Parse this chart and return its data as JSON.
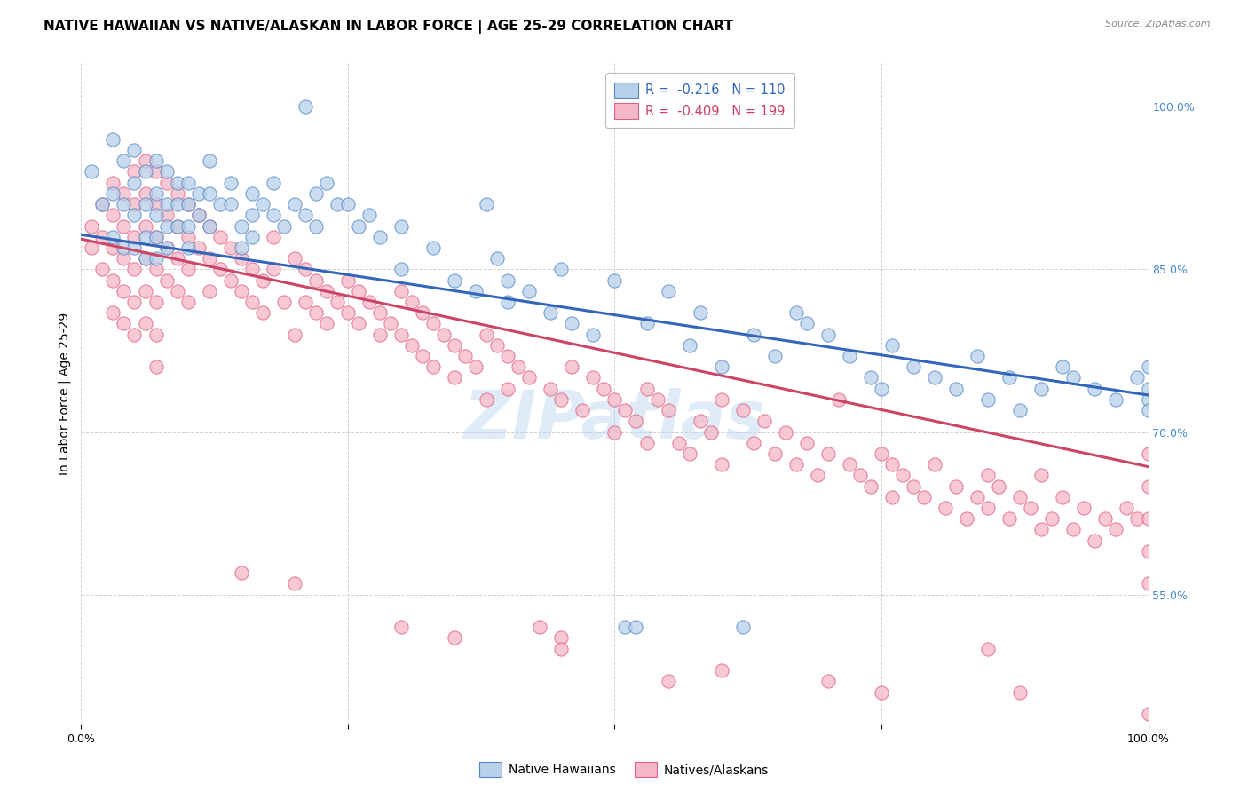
{
  "title": "NATIVE HAWAIIAN VS NATIVE/ALASKAN IN LABOR FORCE | AGE 25-29 CORRELATION CHART",
  "source": "Source: ZipAtlas.com",
  "ylabel": "In Labor Force | Age 25-29",
  "xlim": [
    0,
    1
  ],
  "ylim": [
    0.43,
    1.04
  ],
  "xtick_vals": [
    0.0,
    0.25,
    0.5,
    0.75,
    1.0
  ],
  "xtick_labels": [
    "0.0%",
    "",
    "",
    "",
    "100.0%"
  ],
  "ytick_labels_right": [
    "55.0%",
    "70.0%",
    "85.0%",
    "100.0%"
  ],
  "ytick_vals_right": [
    0.55,
    0.7,
    0.85,
    1.0
  ],
  "legend_blue_label": "R =  -0.216   N = 110",
  "legend_pink_label": "R =  -0.409   N = 199",
  "blue_fill": "#b8d0ea",
  "pink_fill": "#f5b8c8",
  "blue_edge": "#5588c8",
  "pink_edge": "#e06080",
  "blue_line_color": "#3366bb",
  "pink_line_color": "#cc4466",
  "blue_intercept": 0.882,
  "blue_slope": -0.148,
  "pink_intercept": 0.878,
  "pink_slope": -0.21,
  "watermark": "ZIPatlas",
  "background_color": "#ffffff",
  "grid_color": "#cccccc",
  "title_fontsize": 11,
  "axis_label_fontsize": 10,
  "tick_fontsize": 9,
  "right_tick_color": "#4488cc",
  "blue_scatter": [
    [
      0.01,
      0.94
    ],
    [
      0.02,
      0.91
    ],
    [
      0.03,
      0.97
    ],
    [
      0.03,
      0.92
    ],
    [
      0.03,
      0.88
    ],
    [
      0.04,
      0.95
    ],
    [
      0.04,
      0.91
    ],
    [
      0.04,
      0.87
    ],
    [
      0.05,
      0.96
    ],
    [
      0.05,
      0.93
    ],
    [
      0.05,
      0.9
    ],
    [
      0.05,
      0.87
    ],
    [
      0.06,
      0.94
    ],
    [
      0.06,
      0.91
    ],
    [
      0.06,
      0.88
    ],
    [
      0.06,
      0.86
    ],
    [
      0.07,
      0.95
    ],
    [
      0.07,
      0.92
    ],
    [
      0.07,
      0.9
    ],
    [
      0.07,
      0.88
    ],
    [
      0.07,
      0.86
    ],
    [
      0.08,
      0.94
    ],
    [
      0.08,
      0.91
    ],
    [
      0.08,
      0.89
    ],
    [
      0.08,
      0.87
    ],
    [
      0.09,
      0.93
    ],
    [
      0.09,
      0.91
    ],
    [
      0.09,
      0.89
    ],
    [
      0.1,
      0.93
    ],
    [
      0.1,
      0.91
    ],
    [
      0.1,
      0.89
    ],
    [
      0.1,
      0.87
    ],
    [
      0.11,
      0.92
    ],
    [
      0.11,
      0.9
    ],
    [
      0.12,
      0.95
    ],
    [
      0.12,
      0.92
    ],
    [
      0.12,
      0.89
    ],
    [
      0.13,
      0.91
    ],
    [
      0.14,
      0.93
    ],
    [
      0.14,
      0.91
    ],
    [
      0.15,
      0.89
    ],
    [
      0.15,
      0.87
    ],
    [
      0.16,
      0.92
    ],
    [
      0.16,
      0.9
    ],
    [
      0.16,
      0.88
    ],
    [
      0.17,
      0.91
    ],
    [
      0.18,
      0.93
    ],
    [
      0.18,
      0.9
    ],
    [
      0.19,
      0.89
    ],
    [
      0.2,
      0.91
    ],
    [
      0.21,
      1.0
    ],
    [
      0.21,
      0.9
    ],
    [
      0.22,
      0.92
    ],
    [
      0.22,
      0.89
    ],
    [
      0.23,
      0.93
    ],
    [
      0.24,
      0.91
    ],
    [
      0.25,
      0.91
    ],
    [
      0.26,
      0.89
    ],
    [
      0.27,
      0.9
    ],
    [
      0.28,
      0.88
    ],
    [
      0.3,
      0.85
    ],
    [
      0.3,
      0.89
    ],
    [
      0.33,
      0.87
    ],
    [
      0.35,
      0.84
    ],
    [
      0.37,
      0.83
    ],
    [
      0.38,
      0.91
    ],
    [
      0.39,
      0.86
    ],
    [
      0.4,
      0.82
    ],
    [
      0.4,
      0.84
    ],
    [
      0.42,
      0.83
    ],
    [
      0.44,
      0.81
    ],
    [
      0.45,
      0.85
    ],
    [
      0.46,
      0.8
    ],
    [
      0.48,
      0.79
    ],
    [
      0.5,
      0.84
    ],
    [
      0.51,
      0.52
    ],
    [
      0.52,
      0.52
    ],
    [
      0.53,
      0.8
    ],
    [
      0.55,
      0.83
    ],
    [
      0.57,
      0.78
    ],
    [
      0.58,
      0.81
    ],
    [
      0.6,
      0.76
    ],
    [
      0.63,
      0.79
    ],
    [
      0.65,
      0.77
    ],
    [
      0.67,
      0.81
    ],
    [
      0.68,
      0.8
    ],
    [
      0.7,
      0.79
    ],
    [
      0.72,
      0.77
    ],
    [
      0.74,
      0.75
    ],
    [
      0.75,
      0.74
    ],
    [
      0.76,
      0.78
    ],
    [
      0.78,
      0.76
    ],
    [
      0.8,
      0.75
    ],
    [
      0.82,
      0.74
    ],
    [
      0.84,
      0.77
    ],
    [
      0.85,
      0.73
    ],
    [
      0.87,
      0.75
    ],
    [
      0.88,
      0.72
    ],
    [
      0.9,
      0.74
    ],
    [
      0.92,
      0.76
    ],
    [
      0.93,
      0.75
    ],
    [
      0.95,
      0.74
    ],
    [
      0.97,
      0.73
    ],
    [
      0.99,
      0.75
    ],
    [
      1.0,
      0.73
    ],
    [
      1.0,
      0.76
    ],
    [
      1.0,
      0.72
    ],
    [
      1.0,
      0.74
    ],
    [
      0.62,
      0.52
    ]
  ],
  "pink_scatter": [
    [
      0.01,
      0.89
    ],
    [
      0.01,
      0.87
    ],
    [
      0.02,
      0.91
    ],
    [
      0.02,
      0.88
    ],
    [
      0.02,
      0.85
    ],
    [
      0.03,
      0.93
    ],
    [
      0.03,
      0.9
    ],
    [
      0.03,
      0.87
    ],
    [
      0.03,
      0.84
    ],
    [
      0.03,
      0.81
    ],
    [
      0.04,
      0.92
    ],
    [
      0.04,
      0.89
    ],
    [
      0.04,
      0.86
    ],
    [
      0.04,
      0.83
    ],
    [
      0.04,
      0.8
    ],
    [
      0.05,
      0.94
    ],
    [
      0.05,
      0.91
    ],
    [
      0.05,
      0.88
    ],
    [
      0.05,
      0.85
    ],
    [
      0.05,
      0.82
    ],
    [
      0.05,
      0.79
    ],
    [
      0.06,
      0.95
    ],
    [
      0.06,
      0.92
    ],
    [
      0.06,
      0.89
    ],
    [
      0.06,
      0.86
    ],
    [
      0.06,
      0.83
    ],
    [
      0.06,
      0.8
    ],
    [
      0.07,
      0.94
    ],
    [
      0.07,
      0.91
    ],
    [
      0.07,
      0.88
    ],
    [
      0.07,
      0.85
    ],
    [
      0.07,
      0.82
    ],
    [
      0.07,
      0.79
    ],
    [
      0.07,
      0.76
    ],
    [
      0.08,
      0.93
    ],
    [
      0.08,
      0.9
    ],
    [
      0.08,
      0.87
    ],
    [
      0.08,
      0.84
    ],
    [
      0.09,
      0.92
    ],
    [
      0.09,
      0.89
    ],
    [
      0.09,
      0.86
    ],
    [
      0.09,
      0.83
    ],
    [
      0.1,
      0.91
    ],
    [
      0.1,
      0.88
    ],
    [
      0.1,
      0.85
    ],
    [
      0.1,
      0.82
    ],
    [
      0.11,
      0.9
    ],
    [
      0.11,
      0.87
    ],
    [
      0.12,
      0.89
    ],
    [
      0.12,
      0.86
    ],
    [
      0.12,
      0.83
    ],
    [
      0.13,
      0.88
    ],
    [
      0.13,
      0.85
    ],
    [
      0.14,
      0.87
    ],
    [
      0.14,
      0.84
    ],
    [
      0.15,
      0.86
    ],
    [
      0.15,
      0.83
    ],
    [
      0.16,
      0.85
    ],
    [
      0.16,
      0.82
    ],
    [
      0.17,
      0.84
    ],
    [
      0.17,
      0.81
    ],
    [
      0.18,
      0.88
    ],
    [
      0.18,
      0.85
    ],
    [
      0.19,
      0.82
    ],
    [
      0.2,
      0.86
    ],
    [
      0.2,
      0.79
    ],
    [
      0.21,
      0.85
    ],
    [
      0.21,
      0.82
    ],
    [
      0.22,
      0.84
    ],
    [
      0.22,
      0.81
    ],
    [
      0.23,
      0.83
    ],
    [
      0.23,
      0.8
    ],
    [
      0.24,
      0.82
    ],
    [
      0.25,
      0.81
    ],
    [
      0.25,
      0.84
    ],
    [
      0.26,
      0.8
    ],
    [
      0.26,
      0.83
    ],
    [
      0.27,
      0.82
    ],
    [
      0.28,
      0.79
    ],
    [
      0.28,
      0.81
    ],
    [
      0.29,
      0.8
    ],
    [
      0.3,
      0.83
    ],
    [
      0.3,
      0.79
    ],
    [
      0.31,
      0.82
    ],
    [
      0.31,
      0.78
    ],
    [
      0.32,
      0.81
    ],
    [
      0.32,
      0.77
    ],
    [
      0.33,
      0.8
    ],
    [
      0.33,
      0.76
    ],
    [
      0.34,
      0.79
    ],
    [
      0.35,
      0.78
    ],
    [
      0.35,
      0.75
    ],
    [
      0.36,
      0.77
    ],
    [
      0.37,
      0.76
    ],
    [
      0.38,
      0.79
    ],
    [
      0.38,
      0.73
    ],
    [
      0.39,
      0.78
    ],
    [
      0.4,
      0.77
    ],
    [
      0.4,
      0.74
    ],
    [
      0.41,
      0.76
    ],
    [
      0.42,
      0.75
    ],
    [
      0.43,
      0.52
    ],
    [
      0.44,
      0.74
    ],
    [
      0.45,
      0.73
    ],
    [
      0.45,
      0.51
    ],
    [
      0.46,
      0.76
    ],
    [
      0.47,
      0.72
    ],
    [
      0.48,
      0.75
    ],
    [
      0.49,
      0.74
    ],
    [
      0.5,
      0.73
    ],
    [
      0.5,
      0.7
    ],
    [
      0.51,
      0.72
    ],
    [
      0.52,
      0.71
    ],
    [
      0.53,
      0.74
    ],
    [
      0.53,
      0.69
    ],
    [
      0.54,
      0.73
    ],
    [
      0.55,
      0.72
    ],
    [
      0.56,
      0.69
    ],
    [
      0.57,
      0.68
    ],
    [
      0.58,
      0.71
    ],
    [
      0.59,
      0.7
    ],
    [
      0.6,
      0.73
    ],
    [
      0.6,
      0.67
    ],
    [
      0.62,
      0.72
    ],
    [
      0.63,
      0.69
    ],
    [
      0.64,
      0.71
    ],
    [
      0.65,
      0.68
    ],
    [
      0.66,
      0.7
    ],
    [
      0.67,
      0.67
    ],
    [
      0.68,
      0.69
    ],
    [
      0.69,
      0.66
    ],
    [
      0.7,
      0.68
    ],
    [
      0.71,
      0.73
    ],
    [
      0.72,
      0.67
    ],
    [
      0.73,
      0.66
    ],
    [
      0.74,
      0.65
    ],
    [
      0.75,
      0.68
    ],
    [
      0.76,
      0.67
    ],
    [
      0.76,
      0.64
    ],
    [
      0.77,
      0.66
    ],
    [
      0.78,
      0.65
    ],
    [
      0.79,
      0.64
    ],
    [
      0.8,
      0.67
    ],
    [
      0.81,
      0.63
    ],
    [
      0.82,
      0.65
    ],
    [
      0.83,
      0.62
    ],
    [
      0.84,
      0.64
    ],
    [
      0.85,
      0.66
    ],
    [
      0.85,
      0.63
    ],
    [
      0.86,
      0.65
    ],
    [
      0.87,
      0.62
    ],
    [
      0.88,
      0.64
    ],
    [
      0.89,
      0.63
    ],
    [
      0.9,
      0.66
    ],
    [
      0.9,
      0.61
    ],
    [
      0.91,
      0.62
    ],
    [
      0.92,
      0.64
    ],
    [
      0.93,
      0.61
    ],
    [
      0.94,
      0.63
    ],
    [
      0.95,
      0.6
    ],
    [
      0.96,
      0.62
    ],
    [
      0.97,
      0.61
    ],
    [
      0.98,
      0.63
    ],
    [
      0.99,
      0.62
    ],
    [
      1.0,
      0.68
    ],
    [
      1.0,
      0.65
    ],
    [
      1.0,
      0.62
    ],
    [
      1.0,
      0.59
    ],
    [
      1.0,
      0.56
    ],
    [
      0.85,
      0.5
    ],
    [
      0.7,
      0.47
    ],
    [
      0.88,
      0.46
    ],
    [
      0.6,
      0.48
    ],
    [
      0.75,
      0.46
    ],
    [
      0.45,
      0.5
    ],
    [
      0.55,
      0.47
    ],
    [
      0.35,
      0.51
    ],
    [
      0.2,
      0.56
    ],
    [
      0.15,
      0.57
    ],
    [
      0.3,
      0.52
    ],
    [
      1.0,
      0.44
    ]
  ]
}
